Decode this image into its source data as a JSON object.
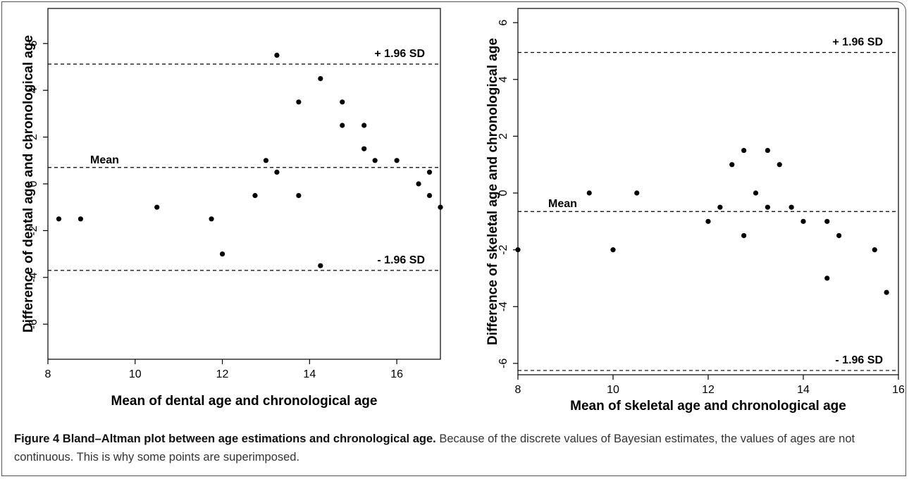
{
  "caption": {
    "label": "Figure 4",
    "title": "Bland–Altman plot between age estimations and chronological age.",
    "text": "Because of the discrete values of Bayesian estimates, the values of ages are not continuous. This is why some points are superimposed."
  },
  "chart_data": [
    {
      "type": "scatter",
      "xlabel": "Mean of dental age and chronological age",
      "ylabel": "Difference of dental age and chronological age",
      "xlim": [
        8,
        17
      ],
      "ylim": [
        -7.5,
        7.5
      ],
      "xticks": [
        8,
        10,
        12,
        14,
        16
      ],
      "yticks": [
        -6,
        -4,
        -2,
        0,
        2,
        4,
        6
      ],
      "grid": false,
      "reference_lines": [
        {
          "label": "+ 1.96 SD",
          "y": 5.12
        },
        {
          "label": "Mean",
          "y": 0.7
        },
        {
          "label": "- 1.96 SD",
          "y": -3.7
        }
      ],
      "points": [
        [
          8.25,
          -1.5
        ],
        [
          8.75,
          -1.5
        ],
        [
          10.5,
          -1.0
        ],
        [
          11.75,
          -1.5
        ],
        [
          12.0,
          -3.0
        ],
        [
          12.75,
          -0.5
        ],
        [
          13.0,
          1.0
        ],
        [
          13.25,
          0.5
        ],
        [
          13.25,
          5.5
        ],
        [
          13.75,
          3.5
        ],
        [
          13.75,
          -0.5
        ],
        [
          14.25,
          4.5
        ],
        [
          14.25,
          -3.5
        ],
        [
          14.75,
          3.5
        ],
        [
          14.75,
          2.5
        ],
        [
          15.25,
          2.5
        ],
        [
          15.25,
          1.5
        ],
        [
          15.5,
          1.0
        ],
        [
          16.0,
          1.0
        ],
        [
          16.5,
          0.0
        ],
        [
          16.75,
          0.5
        ],
        [
          16.75,
          -0.5
        ],
        [
          17.0,
          -1.0
        ]
      ]
    },
    {
      "type": "scatter",
      "xlabel": "Mean of skeletal age and chronological age",
      "ylabel": "Difference of skeletal age and chronological age",
      "xlim": [
        8,
        16
      ],
      "ylim": [
        -6.4,
        6.5
      ],
      "xticks": [
        8,
        10,
        12,
        14,
        16
      ],
      "yticks": [
        -6,
        -4,
        -2,
        0,
        2,
        4,
        6
      ],
      "grid": false,
      "reference_lines": [
        {
          "label": "+ 1.96 SD",
          "y": 4.95
        },
        {
          "label": "Mean",
          "y": -0.65
        },
        {
          "label": "- 1.96 SD",
          "y": -6.25
        }
      ],
      "points": [
        [
          8.0,
          -2.0
        ],
        [
          9.5,
          0.0
        ],
        [
          10.0,
          -2.0
        ],
        [
          10.5,
          0.0
        ],
        [
          12.0,
          -1.0
        ],
        [
          12.25,
          -0.5
        ],
        [
          12.5,
          1.0
        ],
        [
          12.75,
          1.5
        ],
        [
          12.75,
          -1.5
        ],
        [
          13.0,
          0.0
        ],
        [
          13.25,
          1.5
        ],
        [
          13.25,
          -0.5
        ],
        [
          13.5,
          1.0
        ],
        [
          13.75,
          -0.5
        ],
        [
          14.0,
          -1.0
        ],
        [
          14.5,
          -1.0
        ],
        [
          14.5,
          -3.0
        ],
        [
          14.75,
          -1.5
        ],
        [
          15.5,
          -2.0
        ],
        [
          15.75,
          -3.5
        ]
      ]
    }
  ]
}
